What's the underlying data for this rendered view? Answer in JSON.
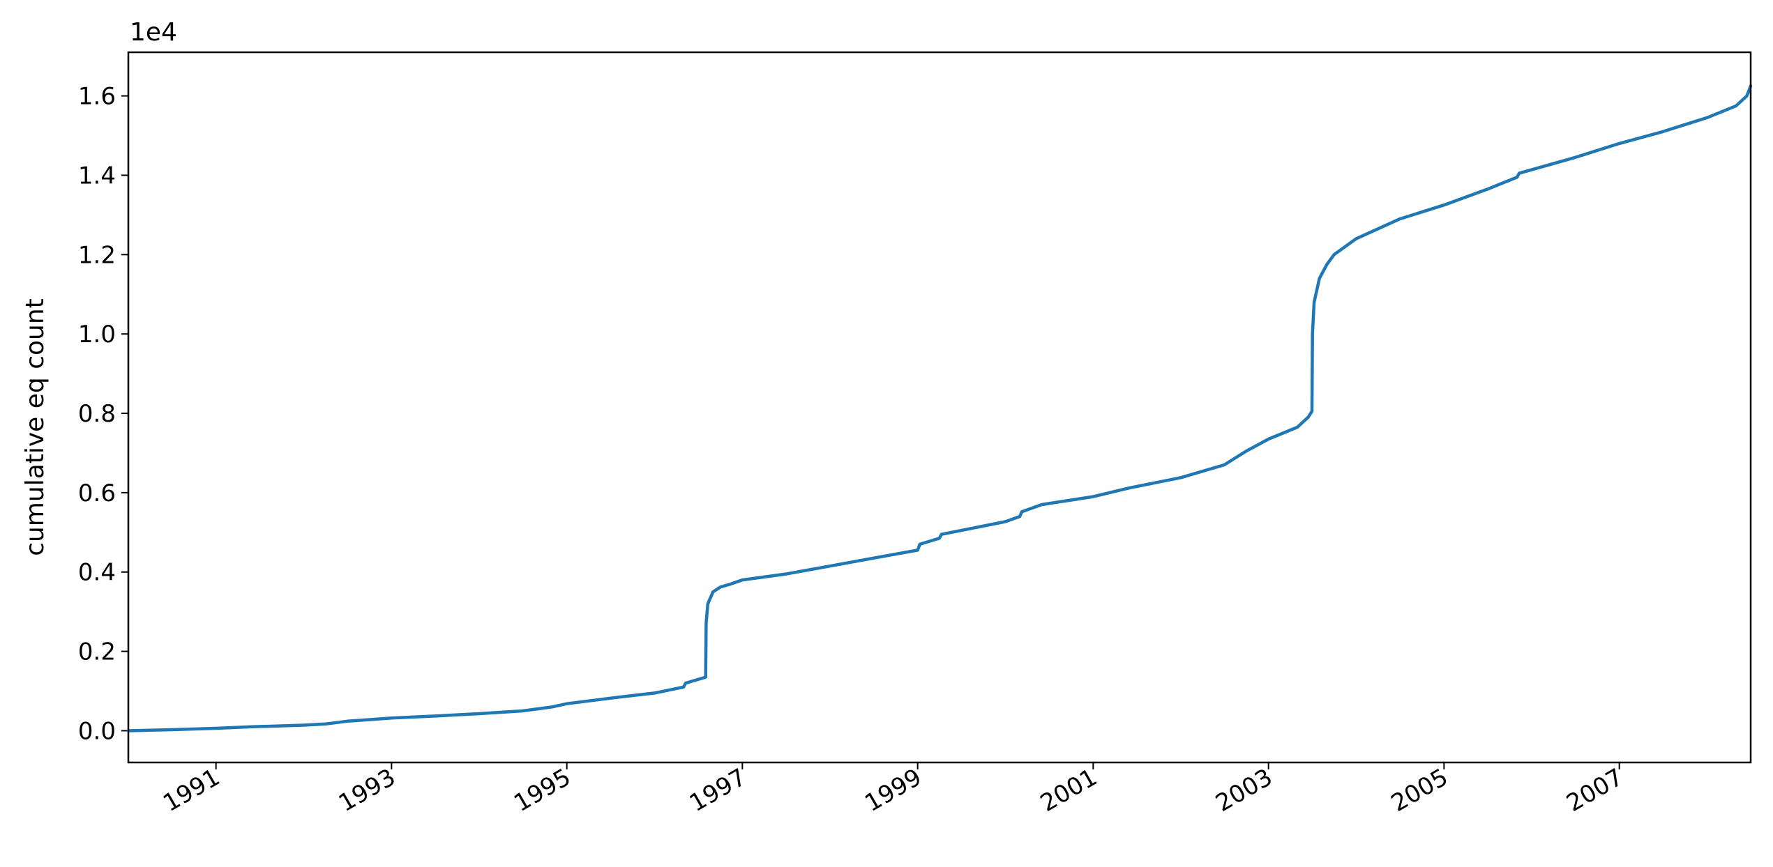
{
  "chart_data": {
    "type": "line",
    "title": "",
    "xlabel": "",
    "ylabel": "cumulative eq count",
    "y_offset_label": "1e4",
    "y_scale_factor": 10000,
    "xlim": [
      "1990-01-01",
      "2008-07-01"
    ],
    "ylim": [
      -0.08,
      1.71
    ],
    "grid": false,
    "legend": "none",
    "color": "#1f77b4",
    "x_ticks": [
      "1991",
      "1993",
      "1995",
      "1997",
      "1999",
      "2001",
      "2003",
      "2005",
      "2007"
    ],
    "y_ticks": [
      "0.0",
      "0.2",
      "0.4",
      "0.6",
      "0.8",
      "1.0",
      "1.2",
      "1.4",
      "1.6"
    ],
    "series": [
      {
        "x": [
          "1990-01-01",
          "1990-06-01",
          "1991-01-01",
          "1991-06-01",
          "1992-01-01",
          "1992-04-01",
          "1992-07-01",
          "1993-01-01",
          "1993-07-01",
          "1994-01-01",
          "1994-07-01",
          "1994-11-01",
          "1995-01-01",
          "1995-07-01",
          "1996-01-01",
          "1996-05-01",
          "1996-05-10",
          "1996-08-01",
          "1996-08-03",
          "1996-08-10",
          "1996-09-01",
          "1996-10-01",
          "1996-11-15",
          "1997-01-01",
          "1997-07-01",
          "1998-01-01",
          "1998-07-01",
          "1999-01-01",
          "1999-01-10",
          "1999-04-01",
          "1999-04-10",
          "2000-01-01",
          "2000-03-01",
          "2000-03-10",
          "2000-06-01",
          "2001-01-01",
          "2001-06-01",
          "2002-01-01",
          "2002-07-01",
          "2002-10-01",
          "2003-01-01",
          "2003-05-01",
          "2003-06-15",
          "2003-07-01",
          "2003-07-03",
          "2003-07-10",
          "2003-08-01",
          "2003-09-01",
          "2003-10-01",
          "2004-01-01",
          "2004-07-01",
          "2005-01-01",
          "2005-07-01",
          "2005-11-01",
          "2005-11-10",
          "2006-07-01",
          "2007-01-01",
          "2007-07-01",
          "2008-01-01",
          "2008-05-01",
          "2008-06-15",
          "2008-07-01"
        ],
        "y": [
          0.0,
          0.002,
          0.006,
          0.01,
          0.014,
          0.017,
          0.024,
          0.032,
          0.037,
          0.043,
          0.05,
          0.06,
          0.068,
          0.082,
          0.095,
          0.11,
          0.12,
          0.135,
          0.27,
          0.32,
          0.35,
          0.362,
          0.37,
          0.38,
          0.395,
          0.415,
          0.435,
          0.455,
          0.47,
          0.485,
          0.495,
          0.527,
          0.54,
          0.552,
          0.57,
          0.59,
          0.612,
          0.638,
          0.67,
          0.705,
          0.735,
          0.765,
          0.79,
          0.805,
          1.0,
          1.08,
          1.14,
          1.175,
          1.2,
          1.24,
          1.29,
          1.325,
          1.365,
          1.395,
          1.405,
          1.445,
          1.48,
          1.51,
          1.545,
          1.575,
          1.6,
          1.625
        ]
      }
    ]
  }
}
